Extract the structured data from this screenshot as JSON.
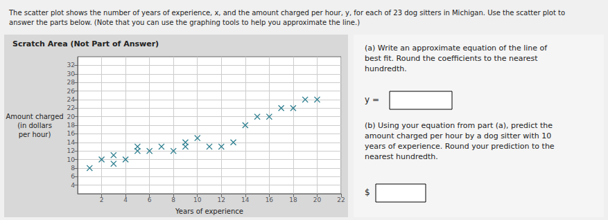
{
  "chart_data": {
    "type": "scatter",
    "title": "The scatter plot shows the number of years of experience, x, and the amount charged per hour, y, for each of 23 dog sitters in Michigan. Use the scatter plot to\nanswer the parts below. (Note that you can use the graphing tools to help you approximate the line.)",
    "xlabel": "Years of experience",
    "ylabel": "Amount charged\n(in dollars\nper hour)",
    "x": [
      1,
      2,
      3,
      3,
      4,
      5,
      5,
      6,
      7,
      8,
      9,
      9,
      10,
      11,
      12,
      13,
      14,
      15,
      16,
      17,
      18,
      19,
      20
    ],
    "values": [
      8,
      10,
      9,
      11,
      10,
      12,
      13,
      12,
      13,
      12,
      13,
      14,
      15,
      13,
      13,
      14,
      18,
      20,
      20,
      22,
      22,
      24,
      24
    ],
    "xlim": [
      0,
      22
    ],
    "ylim": [
      2,
      34
    ],
    "xticks": [
      2,
      4,
      6,
      8,
      10,
      12,
      14,
      16,
      18,
      20,
      22
    ],
    "yticks": [
      4,
      6,
      8,
      10,
      12,
      14,
      16,
      18,
      20,
      22,
      24,
      26,
      28,
      30,
      32
    ],
    "grid": true,
    "marker": "x",
    "color": "#2b7d8e",
    "annotations": [
      "Scratch Area (Not Part of Answer)",
      "(a) Write an approximate equation of the line of\nbest fit. Round the coefficients to the nearest\nhundredth.",
      "y =",
      "(b) Using your equation from part (a), predict the\namount charged per hour by a dog sitter with 10\nyears of experience. Round your prediction to the\nnearest hundredth.",
      "$"
    ]
  }
}
